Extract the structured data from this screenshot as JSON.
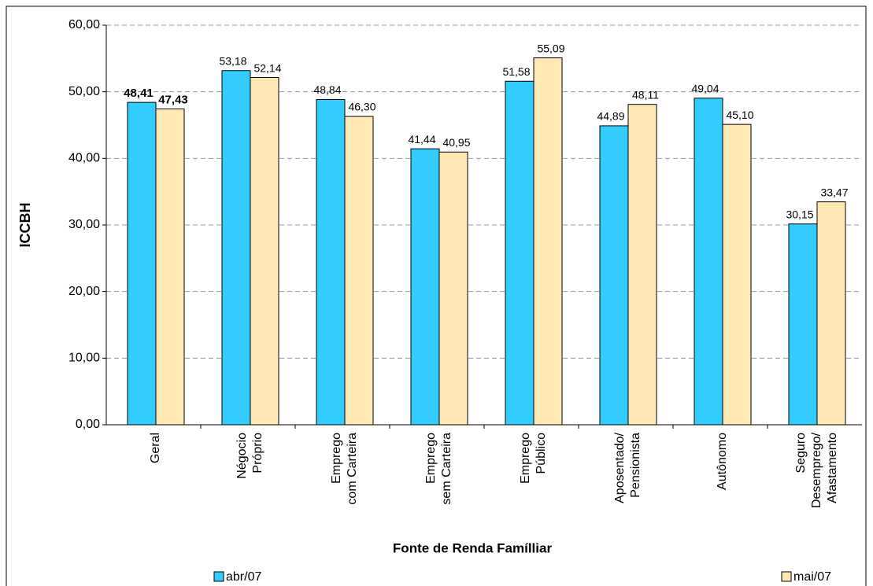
{
  "chart_data": {
    "type": "bar",
    "y_label": "ICCBH",
    "x_label": "Fonte de Renda Famílliar",
    "categories": [
      "Geral",
      "Négocio\nPróprio",
      "Emprego\ncom Carteira",
      "Emprego\nsem Carteira",
      "Emprego\nPúblico",
      "Aposentado/\nPensionista",
      "Autônomo",
      "Seguro\nDesemprego/\nAfastamento"
    ],
    "series": [
      {
        "name": "abr/07",
        "color": "#33ccff",
        "values": [
          48.41,
          53.18,
          48.84,
          41.44,
          51.58,
          44.89,
          49.04,
          30.15
        ],
        "value_labels": [
          "48,41",
          "53,18",
          "48,84",
          "41,44",
          "51,58",
          "44,89",
          "49,04",
          "30,15"
        ]
      },
      {
        "name": "mai/07",
        "color": "#ffe8b4",
        "values": [
          47.43,
          52.14,
          46.3,
          40.95,
          55.09,
          48.11,
          45.1,
          33.47
        ],
        "value_labels": [
          "47,43",
          "52,14",
          "46,30",
          "40,95",
          "55,09",
          "48,11",
          "45,10",
          "33,47"
        ]
      }
    ],
    "ylim": [
      0,
      60
    ],
    "yticks": [
      {
        "value": 0,
        "label": "0,00"
      },
      {
        "value": 10,
        "label": "10,00"
      },
      {
        "value": 20,
        "label": "20,00"
      },
      {
        "value": 30,
        "label": "30,00"
      },
      {
        "value": 40,
        "label": "40,00"
      },
      {
        "value": 50,
        "label": "50,00"
      },
      {
        "value": 60,
        "label": "60,00"
      }
    ],
    "grid": true,
    "legend": "bottom"
  }
}
